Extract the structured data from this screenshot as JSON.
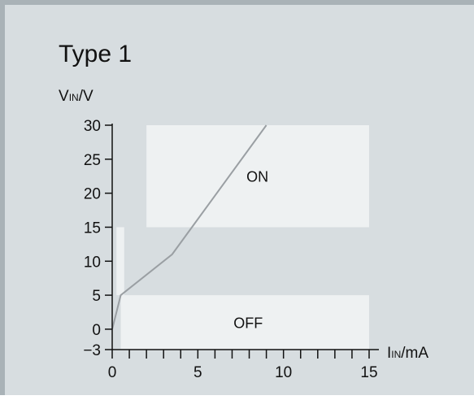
{
  "chart_data": {
    "type": "line",
    "title": "Type 1",
    "ylabel": {
      "symbol": "V",
      "sub": "IN",
      "unit": "/V"
    },
    "xlabel": {
      "symbol": "I",
      "sub": "IN",
      "unit": "/mA"
    },
    "xlim": [
      0,
      15
    ],
    "ylim": [
      -3,
      30
    ],
    "x_ticks": [
      0,
      5,
      10,
      15
    ],
    "x_minor_ticks": [
      0,
      1,
      2,
      3,
      4,
      5,
      6,
      7,
      8,
      9,
      10,
      11,
      12,
      13,
      14,
      15
    ],
    "y_ticks": [
      30,
      25,
      20,
      15,
      10,
      5,
      0,
      -3
    ],
    "y_tick_labels": [
      "30",
      "25",
      "20",
      "15",
      "10",
      "5",
      "0",
      "−3"
    ],
    "grid": false,
    "series": [
      {
        "x": [
          0,
          0.5,
          3.5,
          9
        ],
        "y": [
          0,
          5,
          11,
          30
        ],
        "color": "#9a9fa3"
      }
    ],
    "regions": [
      {
        "label": "ON",
        "x": [
          2,
          15
        ],
        "y": [
          15,
          30
        ]
      },
      {
        "label": "OFF",
        "x": [
          0.5,
          15
        ],
        "y": [
          -3,
          5
        ]
      },
      {
        "label": "",
        "x": [
          0.25,
          0.7
        ],
        "y": [
          5,
          15
        ]
      }
    ],
    "colors": {
      "panel": "#d7dde0",
      "region": "#eef1f2",
      "line": "#9a9fa3",
      "axis": "#111111"
    }
  }
}
